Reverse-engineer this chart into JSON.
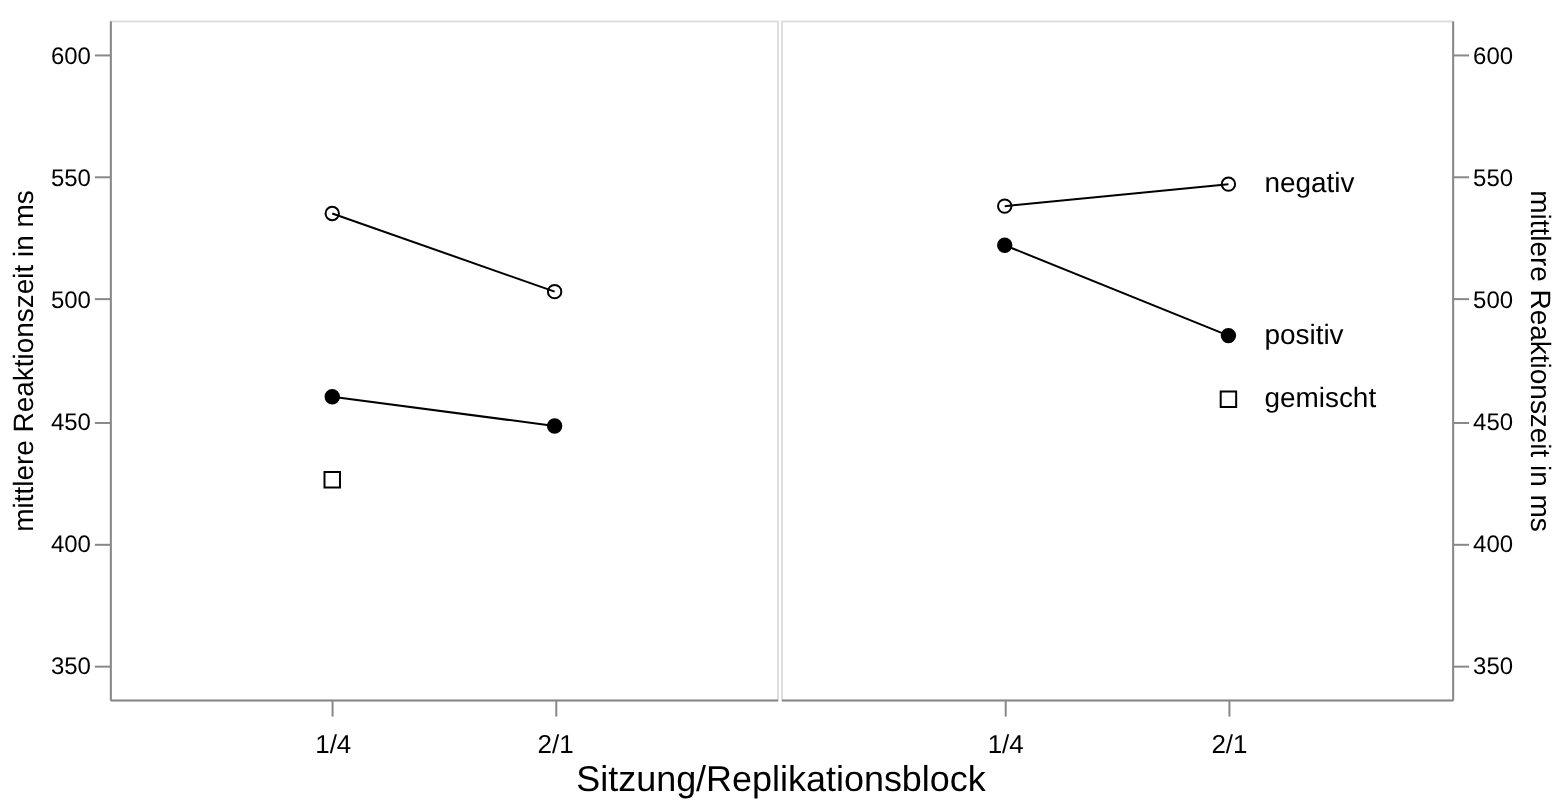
{
  "chart_data": [
    {
      "type": "line",
      "categories": [
        "1/4",
        "2/1"
      ],
      "ylim": [
        336,
        614
      ],
      "yticks": [
        350,
        400,
        450,
        500,
        550,
        600
      ],
      "ylabel": "mittlere Reaktionszeit in ms",
      "xlabel": "Sitzung/Replikationsblock",
      "series": [
        {
          "color": "#ffffff",
          "marker": "circle",
          "values": [
            535,
            503
          ]
        },
        {
          "color": "#000000",
          "marker": "circle",
          "values": [
            460,
            448
          ]
        },
        {
          "type": "scatter",
          "color": "#ffffff",
          "marker": "square",
          "values": [
            426,
            null
          ]
        }
      ]
    },
    {
      "type": "line",
      "categories": [
        "1/4",
        "2/1"
      ],
      "ylim": [
        336,
        614
      ],
      "yticks": [
        350,
        400,
        450,
        500,
        550,
        600
      ],
      "ylabel": "mittlere Reaktionszeit in ms",
      "series": [
        {
          "name": "negativ",
          "color": "#ffffff",
          "marker": "circle",
          "values": [
            538,
            547
          ]
        },
        {
          "name": "positiv",
          "color": "#000000",
          "marker": "circle",
          "values": [
            522,
            485
          ]
        },
        {
          "name": "gemischt",
          "type": "scatter",
          "color": "#ffffff",
          "marker": "square",
          "values": [
            null,
            459
          ]
        }
      ]
    }
  ]
}
